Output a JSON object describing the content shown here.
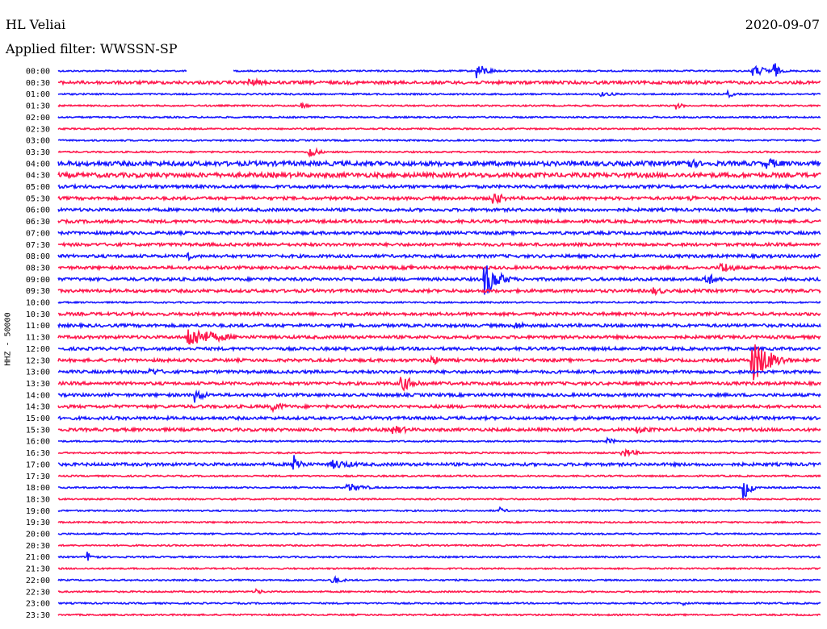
{
  "header": {
    "station": "HL Veliai",
    "date": "2020-09-07",
    "filter": "Applied filter: WWSSN-SP",
    "ylabel": "HHZ - 50000"
  },
  "colors": {
    "blue": "#1a1aff",
    "red": "#ff1a4f"
  },
  "chart_data": {
    "type": "line",
    "title": "HL Veliai",
    "subtitle": "Applied filter: WWSSN-SP",
    "ylabel": "HHZ - 50000",
    "row_labels": [
      "00:00",
      "00:30",
      "01:00",
      "01:30",
      "02:00",
      "02:30",
      "03:00",
      "03:30",
      "04:00",
      "04:30",
      "05:00",
      "05:30",
      "06:00",
      "06:30",
      "07:00",
      "07:30",
      "08:00",
      "08:30",
      "09:00",
      "09:30",
      "10:00",
      "10:30",
      "11:00",
      "11:30",
      "12:00",
      "12:30",
      "13:00",
      "13:30",
      "14:00",
      "14:30",
      "15:00",
      "15:30",
      "16:00",
      "16:30",
      "17:00",
      "17:30",
      "18:00",
      "18:30",
      "19:00",
      "19:30",
      "20:00",
      "20:30",
      "21:00",
      "21:30",
      "22:00",
      "22:30",
      "23:00",
      "23:30"
    ],
    "row_colors": [
      "blue",
      "red"
    ],
    "noise_level": [
      1,
      2,
      1,
      1,
      1,
      1,
      1,
      1,
      3,
      3,
      2,
      2,
      2,
      2,
      2,
      2,
      2,
      2,
      2,
      2,
      1,
      2,
      2,
      2,
      2,
      2,
      2,
      2,
      2,
      2,
      2,
      2,
      1,
      1,
      2,
      1,
      1,
      1,
      1,
      1,
      1,
      1,
      1,
      1,
      1,
      1,
      1,
      1
    ],
    "events": [
      {
        "row": 0,
        "x": 0.55,
        "amp": 10,
        "dur": 0.03
      },
      {
        "row": 0,
        "x": 0.91,
        "amp": 7,
        "dur": 0.06
      },
      {
        "row": 0,
        "x": 0.94,
        "amp": 13,
        "dur": 0.01
      },
      {
        "row": 1,
        "x": 0.25,
        "amp": 5,
        "dur": 0.06
      },
      {
        "row": 2,
        "x": 0.71,
        "amp": 3,
        "dur": 0.06
      },
      {
        "row": 2,
        "x": 0.88,
        "amp": 4,
        "dur": 0.02
      },
      {
        "row": 3,
        "x": 0.32,
        "amp": 4,
        "dur": 0.02
      },
      {
        "row": 3,
        "x": 0.81,
        "amp": 5,
        "dur": 0.02
      },
      {
        "row": 7,
        "x": 0.33,
        "amp": 10,
        "dur": 0.02
      },
      {
        "row": 8,
        "x": 0.82,
        "amp": 8,
        "dur": 0.05
      },
      {
        "row": 8,
        "x": 0.93,
        "amp": 7,
        "dur": 0.06
      },
      {
        "row": 11,
        "x": 0.57,
        "amp": 10,
        "dur": 0.03
      },
      {
        "row": 11,
        "x": 0.83,
        "amp": 5,
        "dur": 0.02
      },
      {
        "row": 16,
        "x": 0.17,
        "amp": 9,
        "dur": 0.01
      },
      {
        "row": 17,
        "x": 0.46,
        "amp": 5,
        "dur": 0.02
      },
      {
        "row": 17,
        "x": 0.87,
        "amp": 8,
        "dur": 0.04
      },
      {
        "row": 18,
        "x": 0.56,
        "amp": 22,
        "dur": 0.04
      },
      {
        "row": 18,
        "x": 0.85,
        "amp": 9,
        "dur": 0.03
      },
      {
        "row": 19,
        "x": 0.78,
        "amp": 5,
        "dur": 0.05
      },
      {
        "row": 22,
        "x": 0.6,
        "amp": 5,
        "dur": 0.04
      },
      {
        "row": 23,
        "x": 0.17,
        "amp": 14,
        "dur": 0.08
      },
      {
        "row": 25,
        "x": 0.91,
        "amp": 30,
        "dur": 0.05
      },
      {
        "row": 25,
        "x": 0.49,
        "amp": 6,
        "dur": 0.04
      },
      {
        "row": 26,
        "x": 0.12,
        "amp": 5,
        "dur": 0.05
      },
      {
        "row": 27,
        "x": 0.45,
        "amp": 10,
        "dur": 0.05
      },
      {
        "row": 28,
        "x": 0.18,
        "amp": 9,
        "dur": 0.03
      },
      {
        "row": 29,
        "x": 0.28,
        "amp": 6,
        "dur": 0.05
      },
      {
        "row": 31,
        "x": 0.44,
        "amp": 6,
        "dur": 0.05
      },
      {
        "row": 31,
        "x": 0.76,
        "amp": 5,
        "dur": 0.05
      },
      {
        "row": 32,
        "x": 0.72,
        "amp": 4,
        "dur": 0.03
      },
      {
        "row": 33,
        "x": 0.74,
        "amp": 6,
        "dur": 0.04
      },
      {
        "row": 34,
        "x": 0.31,
        "amp": 14,
        "dur": 0.02
      },
      {
        "row": 34,
        "x": 0.36,
        "amp": 6,
        "dur": 0.08
      },
      {
        "row": 36,
        "x": 0.38,
        "amp": 6,
        "dur": 0.05
      },
      {
        "row": 36,
        "x": 0.9,
        "amp": 14,
        "dur": 0.02
      },
      {
        "row": 38,
        "x": 0.58,
        "amp": 4,
        "dur": 0.02
      },
      {
        "row": 42,
        "x": 0.04,
        "amp": 6,
        "dur": 0.02
      },
      {
        "row": 44,
        "x": 0.36,
        "amp": 5,
        "dur": 0.03
      },
      {
        "row": 45,
        "x": 0.26,
        "amp": 4,
        "dur": 0.02
      },
      {
        "row": 46,
        "x": 0.82,
        "amp": 3,
        "dur": 0.02
      }
    ]
  }
}
